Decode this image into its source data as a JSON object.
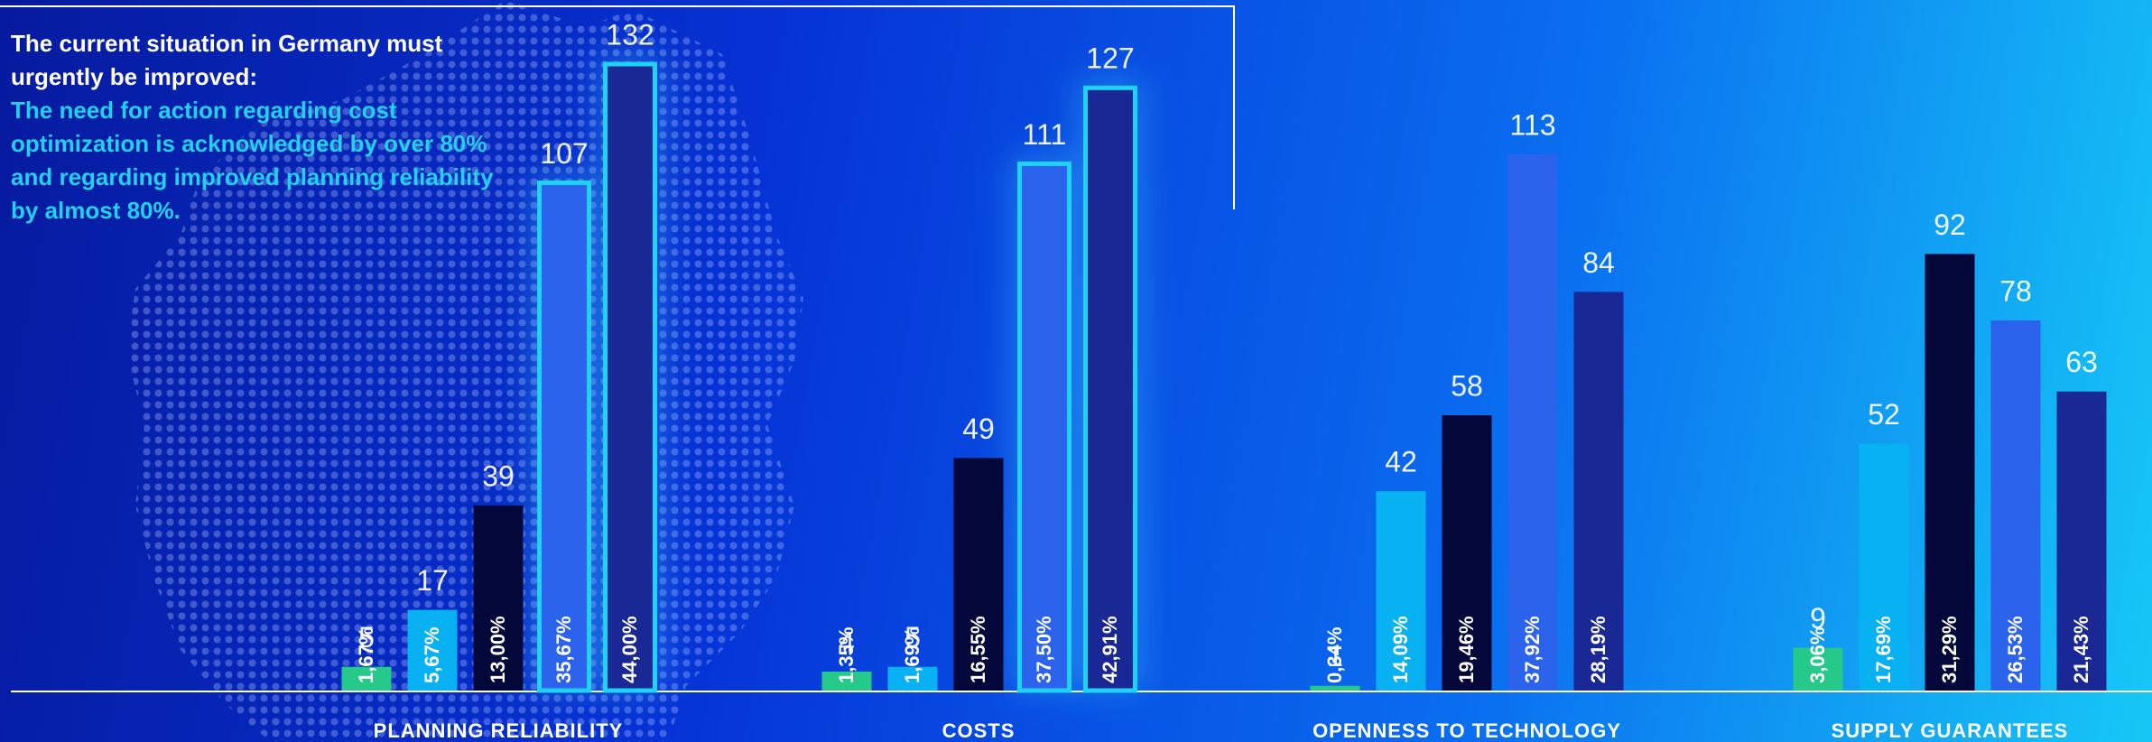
{
  "intro": {
    "heading": "The current situation in Germany must urgently be improved:",
    "text": "The need for action regarding cost optimization is acknowledged by over 80% and regarding improved planning reliability by almost 80%."
  },
  "chart_data": {
    "type": "bar",
    "categories": [
      "PLANNING RELIABILITY",
      "COSTS",
      "OPENNESS TO TECHNOLOGY",
      "SUPPLY GUARANTEES"
    ],
    "series": [
      {
        "color": "#25c98a",
        "values": [
          5,
          4,
          1,
          9
        ],
        "shares": [
          {
            "value": 1.67,
            "label": "1,67%"
          },
          {
            "value": 1.35,
            "label": "1,35%"
          },
          {
            "value": 0.34,
            "label": "0,34%"
          },
          {
            "value": 3.06,
            "label": "3,06%"
          }
        ]
      },
      {
        "color": "#08b2f2",
        "values": [
          17,
          5,
          42,
          52
        ],
        "shares": [
          {
            "value": 5.67,
            "label": "5,67%"
          },
          {
            "value": 1.69,
            "label": "1,69%"
          },
          {
            "value": 14.09,
            "label": "14,09%"
          },
          {
            "value": 17.69,
            "label": "17,69%"
          }
        ]
      },
      {
        "color": "#03073a",
        "values": [
          39,
          49,
          58,
          92
        ],
        "shares": [
          {
            "value": 13,
            "label": "13,00%"
          },
          {
            "value": 16.55,
            "label": "16,55%"
          },
          {
            "value": 19.46,
            "label": "19,46%"
          },
          {
            "value": 31.29,
            "label": "31,29%"
          }
        ]
      },
      {
        "color": "#2b63ec",
        "values": [
          107,
          111,
          113,
          78
        ],
        "shares": [
          {
            "value": 35.67,
            "label": "35,67%"
          },
          {
            "value": 37.5,
            "label": "37,50%"
          },
          {
            "value": 37.92,
            "label": "37,92%"
          },
          {
            "value": 26.53,
            "label": "26,53%"
          }
        ]
      },
      {
        "color": "#1a2896",
        "values": [
          132,
          127,
          84,
          63
        ],
        "shares": [
          {
            "value": 44,
            "label": "44,00%"
          },
          {
            "value": 42.91,
            "label": "42,91%"
          },
          {
            "value": 28.19,
            "label": "28,19%"
          },
          {
            "value": 21.43,
            "label": "21,43%"
          }
        ]
      }
    ]
  }
}
